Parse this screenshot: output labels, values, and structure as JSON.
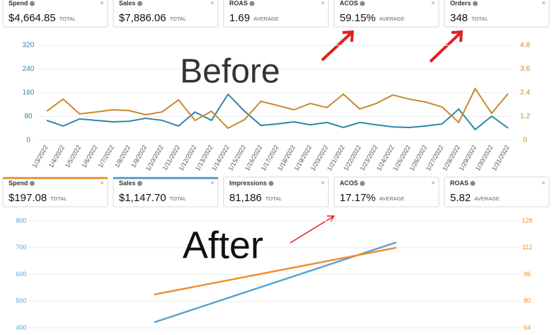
{
  "cards_before": [
    {
      "label": "Spend",
      "value": "$4,664.85",
      "unit": "TOTAL"
    },
    {
      "label": "Sales",
      "value": "$7,886.06",
      "unit": "TOTAL"
    },
    {
      "label": "ROAS",
      "value": "1.69",
      "unit": "AVERAGE"
    },
    {
      "label": "ACOS",
      "value": "59.15%",
      "unit": "AVERAGE"
    },
    {
      "label": "Orders",
      "value": "348",
      "unit": "TOTAL"
    }
  ],
  "cards_after": [
    {
      "label": "Spend",
      "value": "$197.08",
      "unit": "TOTAL"
    },
    {
      "label": "Sales",
      "value": "$1,147.70",
      "unit": "TOTAL"
    },
    {
      "label": "Impressions",
      "value": "81,186",
      "unit": "TOTAL"
    },
    {
      "label": "ACOS",
      "value": "17.17%",
      "unit": "AVERAGE"
    },
    {
      "label": "ROAS",
      "value": "5.82",
      "unit": "AVERAGE"
    }
  ],
  "chart_data": [
    {
      "type": "line",
      "annotation": "Before",
      "categories": [
        "1/3/2022",
        "1/4/2022",
        "1/5/2022",
        "1/6/2022",
        "1/7/2022",
        "1/8/2022",
        "1/9/2022",
        "1/10/2022",
        "1/11/2022",
        "1/12/2022",
        "1/13/2022",
        "1/14/2022",
        "1/15/2022",
        "1/16/2022",
        "1/17/2022",
        "1/18/2022",
        "1/19/2022",
        "1/20/2022",
        "1/21/2022",
        "1/22/2022",
        "1/23/2022",
        "1/24/2022",
        "1/25/2022",
        "1/26/2022",
        "1/27/2022",
        "1/28/2022",
        "1/29/2022",
        "1/30/2022",
        "1/31/2022"
      ],
      "series": [
        {
          "color": "#2e86a6",
          "axis": "y",
          "values": [
            67,
            48,
            72,
            67,
            62,
            64,
            74,
            67,
            48,
            95,
            67,
            155,
            98,
            50,
            55,
            62,
            52,
            60,
            43,
            60,
            52,
            45,
            43,
            48,
            55,
            105,
            36,
            81,
            41
          ]
        },
        {
          "color": "#c8892a",
          "axis": "y2",
          "values": [
            1.47,
            2.08,
            1.33,
            1.43,
            1.54,
            1.5,
            1.29,
            1.43,
            2.04,
            1.0,
            1.47,
            0.61,
            1.04,
            1.97,
            1.76,
            1.54,
            1.86,
            1.65,
            2.33,
            1.58,
            1.86,
            2.29,
            2.08,
            1.93,
            1.68,
            0.9,
            2.61,
            1.36,
            2.36
          ]
        }
      ],
      "ylim": [
        0,
        320
      ],
      "yticks": [
        0,
        80,
        160,
        240,
        320
      ],
      "y2lim": [
        0,
        4.8
      ],
      "y2ticks": [
        0,
        1.2,
        2.4,
        3.6,
        4.8
      ]
    },
    {
      "type": "line",
      "annotation": "After",
      "categories": [
        null,
        null
      ],
      "series": [
        {
          "color": "#5ba4cf",
          "axis": "y",
          "values": [
            421,
            720
          ]
        },
        {
          "color": "#ef8f2f",
          "axis": "y2",
          "values": [
            84,
            112
          ]
        }
      ],
      "ylim": [
        400,
        800
      ],
      "yticks": [
        400,
        500,
        600,
        700,
        800
      ],
      "y2lim": [
        64,
        128
      ],
      "y2ticks": [
        64,
        80,
        96,
        112,
        128
      ]
    }
  ]
}
